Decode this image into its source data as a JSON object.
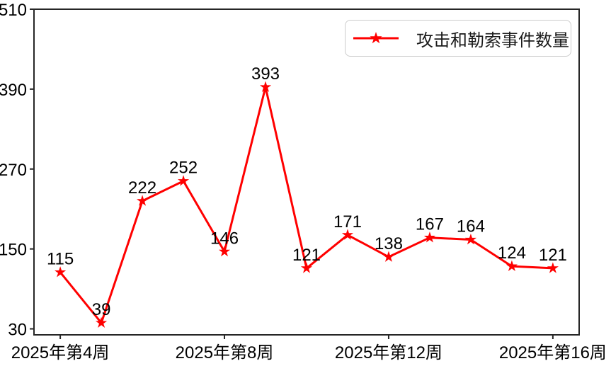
{
  "chart_data": {
    "type": "line",
    "title": "",
    "legend": "攻击和勒索事件数量",
    "legend_position": "upper-right",
    "grid": false,
    "xlim": [
      3.36,
      16.64
    ],
    "ylim": [
      21,
      510
    ],
    "yticks": [
      30,
      150,
      270,
      390,
      510
    ],
    "xticks": [
      {
        "x": 4,
        "label": "2025年第4周"
      },
      {
        "x": 8,
        "label": "2025年第8周"
      },
      {
        "x": 12,
        "label": "2025年第12周"
      },
      {
        "x": 16,
        "label": "2025年第16周"
      }
    ],
    "series": [
      {
        "name": "攻击和勒索事件数量",
        "x": [
          4,
          5,
          6,
          7,
          8,
          9,
          10,
          11,
          12,
          13,
          14,
          15,
          16
        ],
        "values": [
          115,
          39,
          222,
          252,
          146,
          393,
          121,
          171,
          138,
          167,
          164,
          124,
          121
        ],
        "marker": "star",
        "color": "#ff0000",
        "point_labels_visible": true
      }
    ]
  },
  "colors": {
    "line": "#ff0000",
    "text": "#000000",
    "frame": "#262626",
    "legend_border": "#cccccc",
    "background": "#ffffff"
  }
}
